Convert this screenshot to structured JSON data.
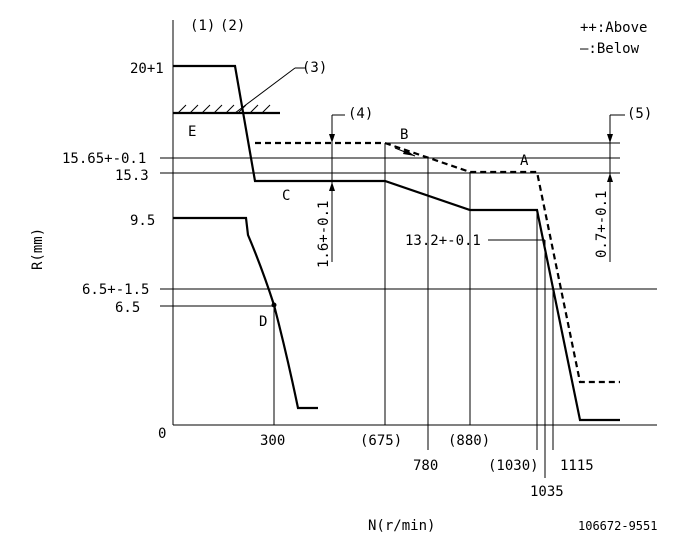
{
  "header": {
    "labels": [
      "(1)",
      "(2)"
    ],
    "legend": [
      "++:Above",
      "—:Below"
    ]
  },
  "callouts": [
    "(3)",
    "(4)",
    "(5)"
  ],
  "y_labels": [
    "20+1",
    "15.65+-0.1",
    "15.3",
    "9.5",
    "6.5+-1.5",
    "6.5",
    "0"
  ],
  "x_labels": [
    "300",
    "(675)",
    "780",
    "(880)",
    "(1030)",
    "1035",
    "1115"
  ],
  "points": [
    "A",
    "B",
    "C",
    "D",
    "E"
  ],
  "annotations": [
    "1.6+-0.1",
    "0.7+-0.1",
    "13.2+-0.1"
  ],
  "axis": {
    "y": "R(mm)",
    "x": "N(r/min)"
  },
  "drawing_no": "106672-9551"
}
